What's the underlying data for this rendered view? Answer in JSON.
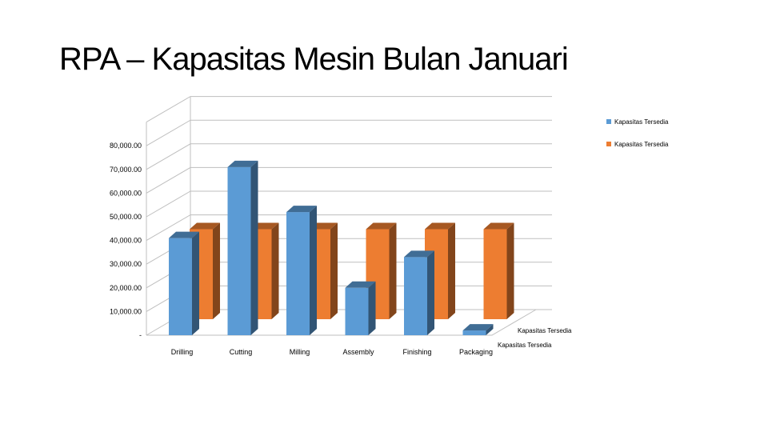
{
  "slide": {
    "title": "RPA – Kapasitas Mesin Bulan Januari"
  },
  "chart_data": {
    "type": "bar",
    "categories": [
      "Drilling",
      "Cutting",
      "Milling",
      "Assembly",
      "Finishing",
      "Packaging"
    ],
    "series": [
      {
        "name": "Kapasitas Tersedia",
        "color": "#5b9bd5",
        "values": [
          41000,
          71000,
          52000,
          20000,
          33000,
          2000
        ]
      },
      {
        "name": "Kapasitas Tersedia",
        "color": "#ed7d31",
        "values": [
          38000,
          38000,
          38000,
          38000,
          38000,
          38000
        ]
      }
    ],
    "y_ticks": [
      "-",
      "10,000.00",
      "20,000.00",
      "30,000.00",
      "40,000.00",
      "50,000.00",
      "60,000.00",
      "70,000.00",
      "80,000.00"
    ],
    "ylim": [
      0,
      90000
    ],
    "legend_position": "top-right",
    "series_axis_labels": [
      "Kapasitas Tersedia",
      "Kapasitas Tersedia"
    ],
    "grid": true
  }
}
